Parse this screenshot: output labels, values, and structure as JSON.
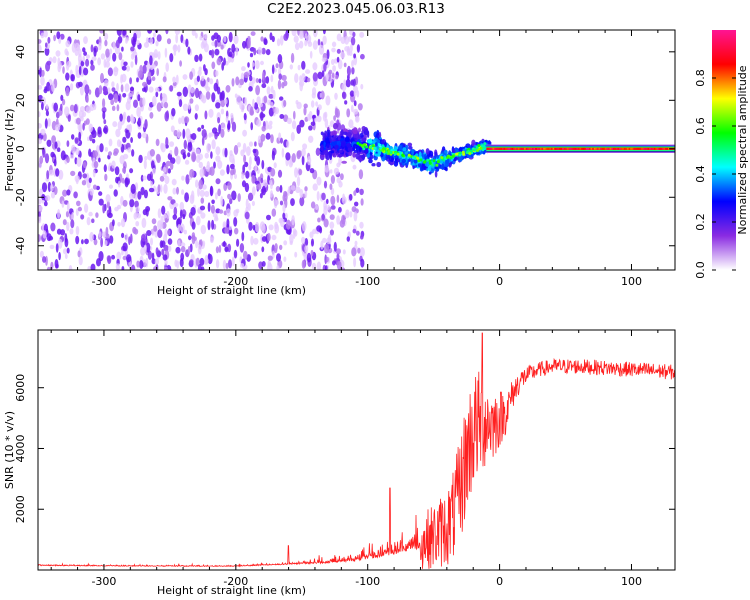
{
  "title": "C2E2.2023.045.06.03.R13",
  "chart_data": [
    {
      "type": "heatmap",
      "xlabel": "Height of straight line (km)",
      "ylabel": "Frequency (Hz)",
      "xlim": [
        -350,
        133
      ],
      "ylim": [
        -50,
        49
      ],
      "xticks": [
        -300,
        -200,
        -100,
        0,
        100
      ],
      "yticks": [
        -40,
        -20,
        0,
        20,
        40
      ],
      "grid": false,
      "colorbar": {
        "label": "Normalized spectral amplitude",
        "range": [
          0,
          1
        ],
        "ticks": [
          "0.0",
          "0.2",
          "0.4",
          "0.6",
          "0.8"
        ],
        "tick_values": [
          0.0,
          0.2,
          0.4,
          0.6,
          0.8
        ],
        "colormap": [
          "#ffffff",
          "#8a2be2",
          "#0000ff",
          "#00ffff",
          "#00ff00",
          "#ffff00",
          "#ff0000",
          "#ff1493"
        ]
      },
      "regions": [
        {
          "name": "noise",
          "x_range": [
            -350,
            -110
          ],
          "freq_range": [
            -50,
            49
          ],
          "amplitude": 0.1
        },
        {
          "name": "transition",
          "x_range": [
            -110,
            -10
          ],
          "freq_center": [
            2,
            0,
            -3,
            -6,
            -2,
            1
          ],
          "amplitude": 0.35
        },
        {
          "name": "carrier",
          "x_range": [
            -10,
            133
          ],
          "freq_center": 0,
          "amplitude": 0.9
        }
      ]
    },
    {
      "type": "line",
      "xlabel": "Height of straight line (km)",
      "ylabel": "SNR (10 * v/v)",
      "xlim": [
        -350,
        133
      ],
      "ylim": [
        0,
        7900
      ],
      "xticks": [
        -300,
        -200,
        -100,
        0,
        100
      ],
      "yticks": [
        2000,
        4000,
        6000
      ],
      "color": "#ff2020",
      "series": [
        {
          "name": "SNR",
          "x": [
            -350,
            -300,
            -250,
            -200,
            -170,
            -150,
            -130,
            -110,
            -100,
            -90,
            -80,
            -70,
            -60,
            -50,
            -40,
            -35,
            -30,
            -25,
            -20,
            -15,
            -10,
            -5,
            0,
            5,
            10,
            15,
            20,
            30,
            40,
            50,
            60,
            80,
            100,
            120,
            133
          ],
          "values": [
            150,
            140,
            130,
            130,
            180,
            220,
            260,
            350,
            450,
            550,
            650,
            800,
            900,
            1100,
            1400,
            1800,
            2600,
            3800,
            4600,
            4800,
            4900,
            4800,
            5000,
            5200,
            5800,
            6200,
            6400,
            6600,
            6700,
            6700,
            6700,
            6650,
            6600,
            6550,
            6500
          ],
          "noise_amplitude": [
            60,
            60,
            60,
            60,
            80,
            120,
            200,
            300,
            500,
            600,
            700,
            900,
            900,
            1100,
            1300,
            1500,
            1800,
            2000,
            2000,
            1800,
            1500,
            1200,
            1000,
            700,
            500,
            400,
            300,
            250,
            250,
            250,
            250,
            250,
            250,
            250,
            250
          ],
          "spikes": [
            {
              "x": -160,
              "y": 800
            },
            {
              "x": -83,
              "y": 2700
            },
            {
              "x": -13,
              "y": 7800
            }
          ]
        }
      ]
    }
  ]
}
